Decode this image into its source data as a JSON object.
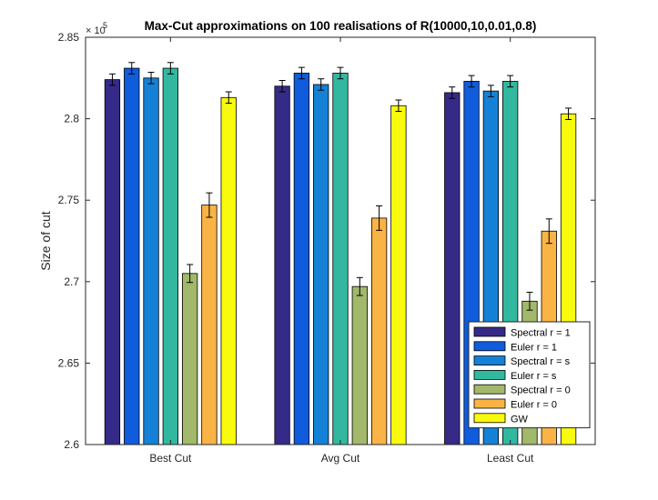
{
  "chart_data": {
    "type": "bar",
    "title": "Max-Cut approximations on 100 realisations of R(10000,10,0.01,0.8)",
    "xlabel": "",
    "ylabel": "Size of cut",
    "y_exponent_base": "× 10",
    "y_exponent_power": "5",
    "ylim": [
      2.6,
      2.85
    ],
    "yticks": [
      2.6,
      2.65,
      2.7,
      2.75,
      2.8,
      2.85
    ],
    "ytick_labels": [
      "2.6",
      "2.65",
      "2.7",
      "2.75",
      "2.8",
      "2.85"
    ],
    "categories": [
      "Best Cut",
      "Avg Cut",
      "Least Cut"
    ],
    "legend_position": "bottom-right",
    "series": [
      {
        "name": "Spectral r = 1",
        "color": "#352a87",
        "values": [
          2.824,
          2.82,
          2.816
        ],
        "errors": [
          0.0035,
          0.0035,
          0.0035
        ]
      },
      {
        "name": "Euler r = 1",
        "color": "#0f5cdd",
        "values": [
          2.831,
          2.828,
          2.823
        ],
        "errors": [
          0.0035,
          0.0035,
          0.0035
        ]
      },
      {
        "name": "Spectral r = s",
        "color": "#1481d6",
        "values": [
          2.825,
          2.821,
          2.817
        ],
        "errors": [
          0.0035,
          0.0035,
          0.0035
        ]
      },
      {
        "name": "Euler r = s",
        "color": "#33b8a0",
        "values": [
          2.831,
          2.828,
          2.823
        ],
        "errors": [
          0.0035,
          0.0035,
          0.0035
        ]
      },
      {
        "name": "Spectral r = 0",
        "color": "#a2b86a",
        "values": [
          2.705,
          2.697,
          2.688
        ],
        "errors": [
          0.0055,
          0.0055,
          0.0055
        ]
      },
      {
        "name": "Euler r = 0",
        "color": "#f9b445",
        "values": [
          2.747,
          2.739,
          2.731
        ],
        "errors": [
          0.0075,
          0.0075,
          0.0075
        ]
      },
      {
        "name": "GW",
        "color": "#f9fb0e",
        "values": [
          2.813,
          2.808,
          2.803
        ],
        "errors": [
          0.0035,
          0.0035,
          0.0035
        ]
      }
    ]
  }
}
